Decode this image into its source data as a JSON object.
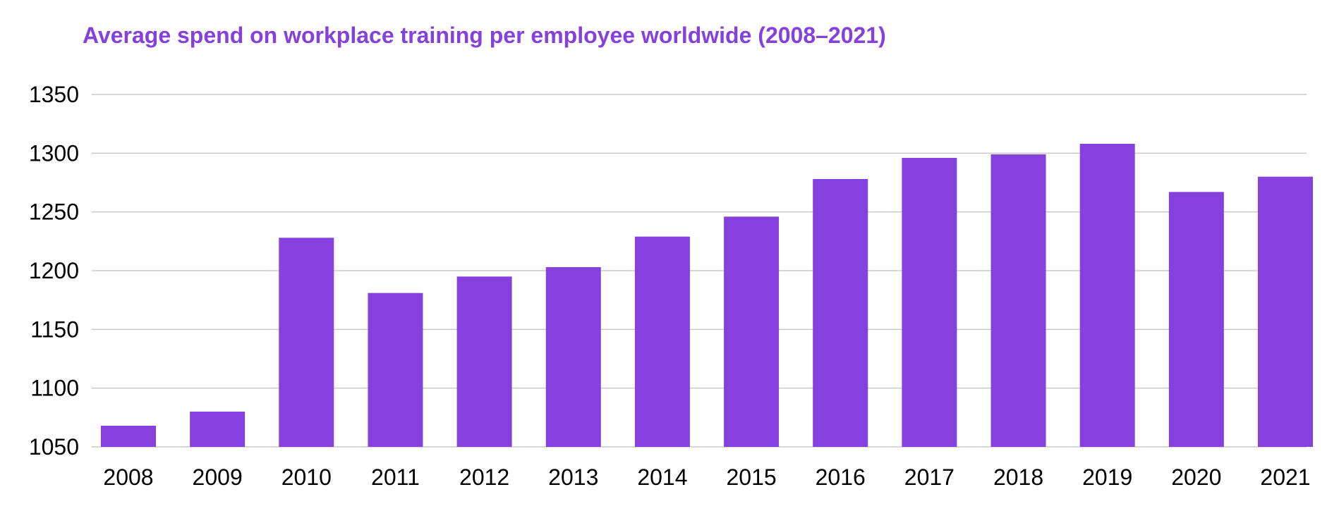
{
  "chart_data": {
    "type": "bar",
    "title": "Average spend on workplace training per employee worldwide (2008–2021)",
    "xlabel": "",
    "ylabel": "",
    "categories": [
      "2008",
      "2009",
      "2010",
      "2011",
      "2012",
      "2013",
      "2014",
      "2015",
      "2016",
      "2017",
      "2018",
      "2019",
      "2020",
      "2021"
    ],
    "values": [
      1068,
      1080,
      1228,
      1181,
      1195,
      1203,
      1229,
      1246,
      1278,
      1296,
      1299,
      1308,
      1267,
      1280
    ],
    "ylim": [
      1050,
      1350
    ],
    "yticks": [
      "1050",
      "1100",
      "1150",
      "1200",
      "1250",
      "1300",
      "1350"
    ],
    "grid": true,
    "legend": "none",
    "colors": {
      "bar": "#8540DD",
      "title": "#8540DD",
      "grid": "#C8C8C8"
    }
  }
}
